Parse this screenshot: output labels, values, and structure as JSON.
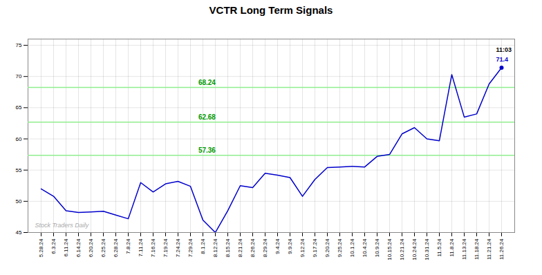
{
  "chart_data": {
    "type": "line",
    "title": "VCTR Long Term Signals",
    "categories": [
      "5.28.24",
      "6.3.24",
      "6.11.24",
      "6.14.24",
      "6.20.24",
      "6.25.24",
      "6.28.24",
      "7.8.24",
      "7.11.24",
      "7.16.24",
      "7.19.24",
      "7.24.24",
      "7.29.24",
      "8.1.24",
      "8.12.24",
      "8.15.24",
      "8.21.24",
      "8.26.24",
      "8.29.24",
      "9.4.24",
      "9.9.24",
      "9.12.24",
      "9.17.24",
      "9.20.24",
      "9.25.24",
      "10.1.24",
      "10.4.24",
      "10.9.24",
      "10.15.24",
      "10.21.24",
      "10.24.24",
      "10.31.24",
      "11.5.24",
      "11.8.24",
      "11.13.24",
      "11.18.24",
      "11.21.24",
      "11.26.24"
    ],
    "values": [
      52.0,
      50.8,
      48.5,
      48.2,
      48.3,
      48.4,
      47.8,
      47.2,
      53.0,
      51.5,
      52.8,
      53.2,
      52.4,
      47.0,
      45.0,
      48.5,
      52.5,
      52.2,
      54.5,
      54.2,
      53.8,
      50.8,
      53.5,
      55.4,
      55.5,
      55.6,
      55.5,
      57.2,
      57.5,
      60.8,
      61.8,
      60.0,
      59.7,
      70.3,
      63.5,
      64.0,
      68.8,
      71.4
    ],
    "color": "#0000cc",
    "ylim": [
      45,
      76
    ],
    "yticks": [
      45,
      50,
      55,
      60,
      65,
      70,
      75
    ],
    "grid": true,
    "hlines": [
      {
        "value": 57.36,
        "label": "57.36",
        "color": "#90EE90"
      },
      {
        "value": 62.68,
        "label": "62.68",
        "color": "#90EE90"
      },
      {
        "value": 68.24,
        "label": "68.24",
        "color": "#90EE90"
      }
    ],
    "watermark": "Stock Traders Daily",
    "annotations": [
      {
        "text": "11:03",
        "color": "#000000"
      },
      {
        "text": "71.4",
        "color": "#0000cc"
      }
    ]
  }
}
